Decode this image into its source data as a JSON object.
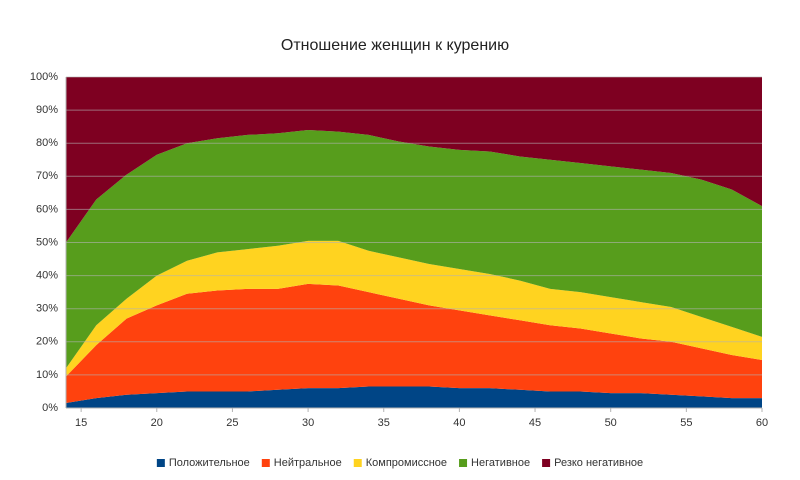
{
  "chart_data": {
    "type": "stacked-area-100",
    "title": "Отношение женщин к курению",
    "x": [
      14,
      16,
      18,
      20,
      22,
      24,
      26,
      28,
      30,
      32,
      34,
      36,
      38,
      40,
      42,
      44,
      46,
      48,
      50,
      52,
      54,
      56,
      58,
      60
    ],
    "xlim": [
      14,
      60
    ],
    "xticks": [
      15,
      20,
      25,
      30,
      35,
      40,
      45,
      50,
      55,
      60
    ],
    "ylim": [
      0,
      100
    ],
    "yticks": [
      {
        "value": 0,
        "label": "0%"
      },
      {
        "value": 10,
        "label": "10%"
      },
      {
        "value": 20,
        "label": "20%"
      },
      {
        "value": 30,
        "label": "30%"
      },
      {
        "value": 40,
        "label": "40%"
      },
      {
        "value": 50,
        "label": "50%"
      },
      {
        "value": 60,
        "label": "60%"
      },
      {
        "value": 70,
        "label": "70%"
      },
      {
        "value": 80,
        "label": "80%"
      },
      {
        "value": 90,
        "label": "90%"
      },
      {
        "value": 100,
        "label": "100%"
      }
    ],
    "grid": true,
    "legend": "bottom",
    "series": [
      {
        "name": "Положительное",
        "color": "#004586",
        "values": [
          1.5,
          3,
          4,
          4.5,
          5,
          5,
          5,
          5.5,
          6,
          6,
          6.5,
          6.5,
          6.5,
          6,
          6,
          5.5,
          5,
          5,
          4.5,
          4.5,
          4,
          3.5,
          3,
          3
        ]
      },
      {
        "name": "Нейтральное",
        "color": "#ff420e",
        "values": [
          8,
          16,
          23,
          26.5,
          29.5,
          30.5,
          31,
          30.5,
          31.5,
          31,
          28.5,
          26.5,
          24.5,
          23.5,
          22,
          21,
          20,
          19,
          18,
          16.5,
          16,
          14.5,
          13,
          11.5
        ]
      },
      {
        "name": "Компромиссное",
        "color": "#ffd320",
        "values": [
          2.5,
          6,
          6,
          9,
          10,
          11.5,
          12,
          13,
          13,
          13.5,
          12.5,
          12.5,
          12.5,
          12.5,
          12.5,
          12,
          11,
          11,
          11,
          11,
          10.5,
          9.5,
          8.5,
          7
        ]
      },
      {
        "name": "Негативное",
        "color": "#579d1c",
        "values": [
          38,
          38,
          37.5,
          36.5,
          35.5,
          34.5,
          34.5,
          34,
          33.5,
          33,
          35,
          35,
          35.5,
          36,
          37,
          37.5,
          39,
          39,
          39.5,
          40,
          40.5,
          41.5,
          41.5,
          39.5
        ]
      },
      {
        "name": "Резко негативное",
        "color": "#7e0021",
        "values": [
          50,
          37,
          29.5,
          23.5,
          20,
          18.5,
          17.5,
          17,
          16,
          16.5,
          17.5,
          19.5,
          21,
          22,
          22.5,
          24,
          25,
          26,
          27,
          28,
          29,
          31,
          34,
          39
        ]
      }
    ]
  }
}
